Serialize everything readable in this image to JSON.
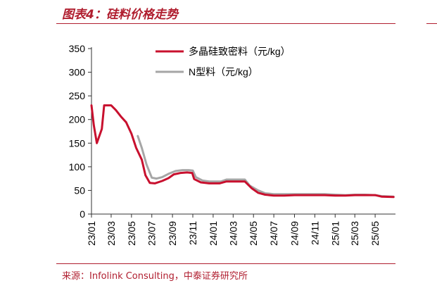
{
  "figure": {
    "title": "图表4：硅料价格走势",
    "source": "来源：Infolink Consulting，中泰证券研究所"
  },
  "chart_data": {
    "type": "line",
    "title": "图表4：硅料价格走势",
    "xlabel": "",
    "ylabel": "",
    "ylim": [
      0,
      350
    ],
    "yticks": [
      0,
      50,
      100,
      150,
      200,
      250,
      300,
      350
    ],
    "xlim": [
      "2023-01",
      "2025-07"
    ],
    "xtick_labels": [
      "23/01",
      "23/03",
      "23/05",
      "23/07",
      "23/09",
      "23/11",
      "24/01",
      "24/03",
      "24/05",
      "24/07",
      "24/09",
      "24/11",
      "25/01",
      "25/03",
      "25/05"
    ],
    "grid": false,
    "legend_position": "top-center",
    "series": [
      {
        "name": "多晶硅致密料（元/kg）",
        "color": "#c8102e",
        "points": [
          [
            "2023-01-01",
            230
          ],
          [
            "2023-01-08",
            188
          ],
          [
            "2023-01-17",
            150
          ],
          [
            "2023-02-01",
            180
          ],
          [
            "2023-02-08",
            230
          ],
          [
            "2023-03-01",
            230
          ],
          [
            "2023-03-15",
            220
          ],
          [
            "2023-04-01",
            205
          ],
          [
            "2023-04-15",
            194
          ],
          [
            "2023-05-01",
            170
          ],
          [
            "2023-05-15",
            140
          ],
          [
            "2023-06-01",
            115
          ],
          [
            "2023-06-12",
            82
          ],
          [
            "2023-06-25",
            66
          ],
          [
            "2023-07-10",
            65
          ],
          [
            "2023-08-01",
            70
          ],
          [
            "2023-08-20",
            76
          ],
          [
            "2023-09-05",
            84
          ],
          [
            "2023-09-25",
            87
          ],
          [
            "2023-10-15",
            88
          ],
          [
            "2023-10-30",
            87
          ],
          [
            "2023-11-05",
            74
          ],
          [
            "2023-11-25",
            67
          ],
          [
            "2023-12-20",
            65
          ],
          [
            "2024-01-20",
            65
          ],
          [
            "2024-02-10",
            69
          ],
          [
            "2024-03-01",
            69
          ],
          [
            "2024-04-05",
            69
          ],
          [
            "2024-04-25",
            55
          ],
          [
            "2024-05-15",
            45
          ],
          [
            "2024-06-05",
            41
          ],
          [
            "2024-07-01",
            39
          ],
          [
            "2024-08-01",
            39
          ],
          [
            "2024-09-01",
            40
          ],
          [
            "2024-10-01",
            40
          ],
          [
            "2024-11-01",
            40
          ],
          [
            "2024-12-01",
            40
          ],
          [
            "2025-01-01",
            39
          ],
          [
            "2025-02-01",
            39
          ],
          [
            "2025-03-01",
            40
          ],
          [
            "2025-04-01",
            40
          ],
          [
            "2025-05-01",
            40
          ],
          [
            "2025-05-20",
            37
          ],
          [
            "2025-06-25",
            36
          ]
        ]
      },
      {
        "name": "N型料（元/kg）",
        "color": "#a6a6a6",
        "points": [
          [
            "2023-05-20",
            165
          ],
          [
            "2023-06-01",
            140
          ],
          [
            "2023-06-15",
            105
          ],
          [
            "2023-07-01",
            77
          ],
          [
            "2023-07-15",
            75
          ],
          [
            "2023-08-01",
            78
          ],
          [
            "2023-08-20",
            85
          ],
          [
            "2023-09-10",
            91
          ],
          [
            "2023-10-01",
            93
          ],
          [
            "2023-10-20",
            93
          ],
          [
            "2023-11-01",
            92
          ],
          [
            "2023-11-10",
            78
          ],
          [
            "2023-11-30",
            71
          ],
          [
            "2023-12-20",
            69
          ],
          [
            "2024-01-25",
            69
          ],
          [
            "2024-02-10",
            73
          ],
          [
            "2024-03-01",
            73
          ],
          [
            "2024-04-05",
            73
          ],
          [
            "2024-04-20",
            60
          ],
          [
            "2024-05-15",
            50
          ],
          [
            "2024-06-05",
            44
          ],
          [
            "2024-07-01",
            42
          ],
          [
            "2024-08-01",
            42
          ],
          [
            "2024-09-01",
            42
          ],
          [
            "2024-10-01",
            42
          ],
          [
            "2024-11-01",
            42
          ],
          [
            "2024-12-01",
            42
          ],
          [
            "2025-01-01",
            41
          ],
          [
            "2025-02-01",
            40
          ],
          [
            "2025-03-01",
            41
          ],
          [
            "2025-04-01",
            41
          ],
          [
            "2025-05-01",
            40
          ],
          [
            "2025-05-20",
            38
          ],
          [
            "2025-06-25",
            37
          ]
        ]
      }
    ]
  }
}
